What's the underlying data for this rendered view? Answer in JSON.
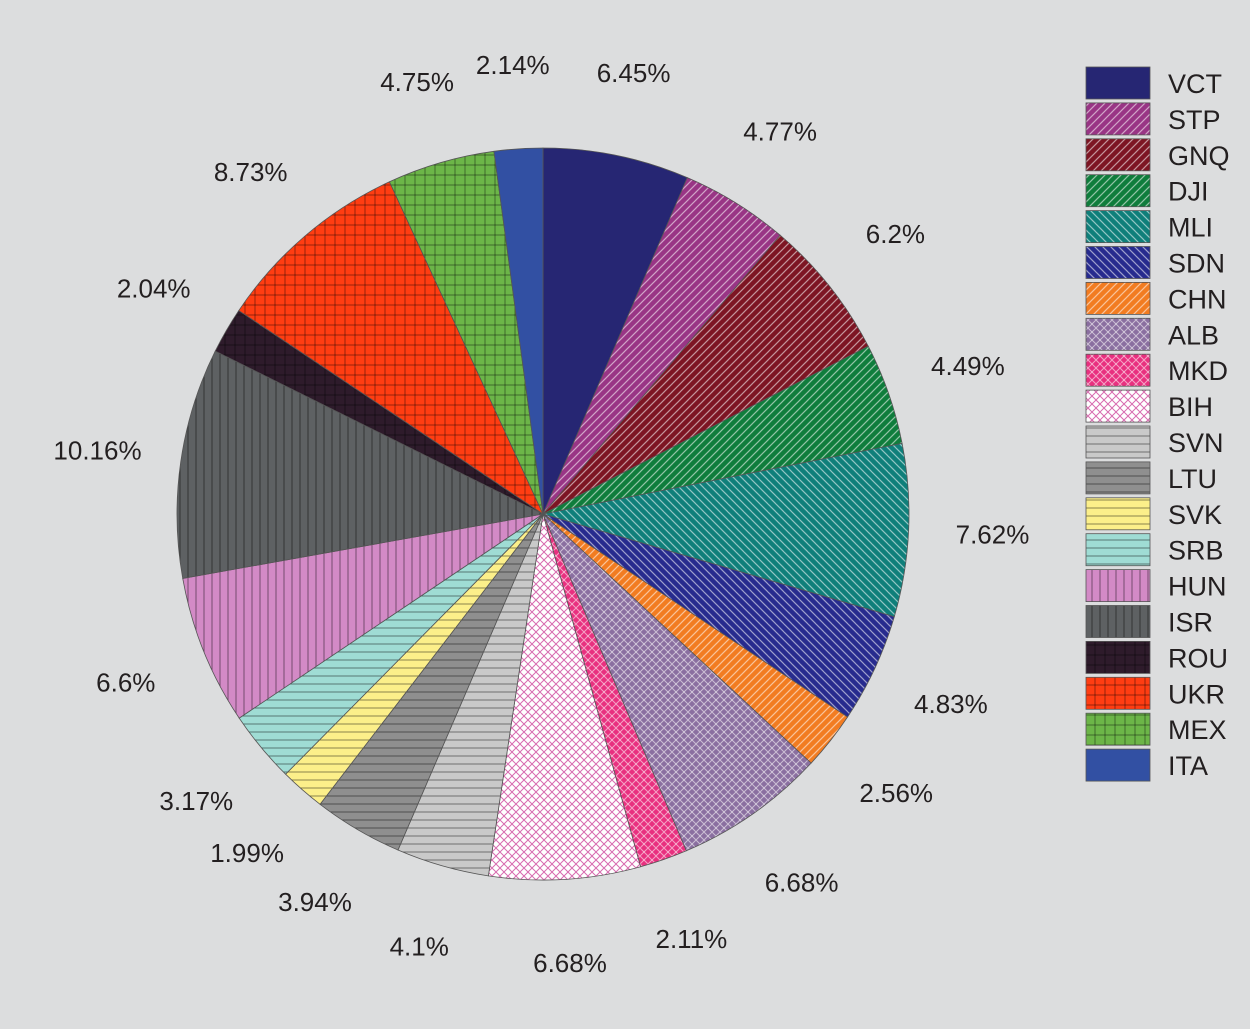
{
  "chart_data": {
    "type": "pie",
    "title": "",
    "legend_position": "right",
    "start_angle_deg": 0,
    "direction": "clockwise",
    "slices": [
      {
        "label": "VCT",
        "value": 6.45,
        "display": "6.45%",
        "color": "#262673",
        "pattern": "solid"
      },
      {
        "label": "STP",
        "value": 4.77,
        "display": "4.77%",
        "color": "#993585",
        "pattern": "diag"
      },
      {
        "label": "GNQ",
        "value": 6.2,
        "display": "6.2%",
        "color": "#7d1523",
        "pattern": "diag"
      },
      {
        "label": "DJI",
        "value": 4.49,
        "display": "4.49%",
        "color": "#0f7d3c",
        "pattern": "diag"
      },
      {
        "label": "MLI",
        "value": 7.62,
        "display": "7.62%",
        "color": "#0f7f7a",
        "pattern": "anti"
      },
      {
        "label": "SDN",
        "value": 4.83,
        "display": "4.83%",
        "color": "#272b8e",
        "pattern": "anti"
      },
      {
        "label": "CHN",
        "value": 2.56,
        "display": "2.56%",
        "color": "#f27c21",
        "pattern": "diag"
      },
      {
        "label": "ALB",
        "value": 6.68,
        "display": "6.68%",
        "color": "#8a6fa0",
        "pattern": "cross"
      },
      {
        "label": "MKD",
        "value": 2.11,
        "display": "2.11%",
        "color": "#e8307f",
        "pattern": "cross"
      },
      {
        "label": "BIH",
        "value": 6.68,
        "display": "6.68%",
        "color": "#ffffff",
        "pattern": "cross-pink"
      },
      {
        "label": "SVN",
        "value": 4.1,
        "display": "4.1%",
        "color": "#c9c9c9",
        "pattern": "horiz"
      },
      {
        "label": "LTU",
        "value": 3.94,
        "display": "3.94%",
        "color": "#8f8f8f",
        "pattern": "horiz"
      },
      {
        "label": "SVK",
        "value": 1.99,
        "display": "1.99%",
        "color": "#fcef8a",
        "pattern": "horiz"
      },
      {
        "label": "SRB",
        "value": 3.17,
        "display": "3.17%",
        "color": "#9fdcd4",
        "pattern": "horiz"
      },
      {
        "label": "HUN",
        "value": 6.6,
        "display": "6.6%",
        "color": "#d38ac6",
        "pattern": "vert"
      },
      {
        "label": "ISR",
        "value": 10.16,
        "display": "10.16%",
        "color": "#5e6163",
        "pattern": "vert"
      },
      {
        "label": "ROU",
        "value": 2.04,
        "display": "2.04%",
        "color": "#2e1b2b",
        "pattern": "grid"
      },
      {
        "label": "UKR",
        "value": 8.73,
        "display": "8.73%",
        "color": "#ff3d12",
        "pattern": "grid"
      },
      {
        "label": "MEX",
        "value": 4.75,
        "display": "4.75%",
        "color": "#6cb548",
        "pattern": "grid"
      },
      {
        "label": "ITA",
        "value": 2.14,
        "display": "2.14%",
        "color": "#3250a3",
        "pattern": "solid"
      }
    ]
  }
}
